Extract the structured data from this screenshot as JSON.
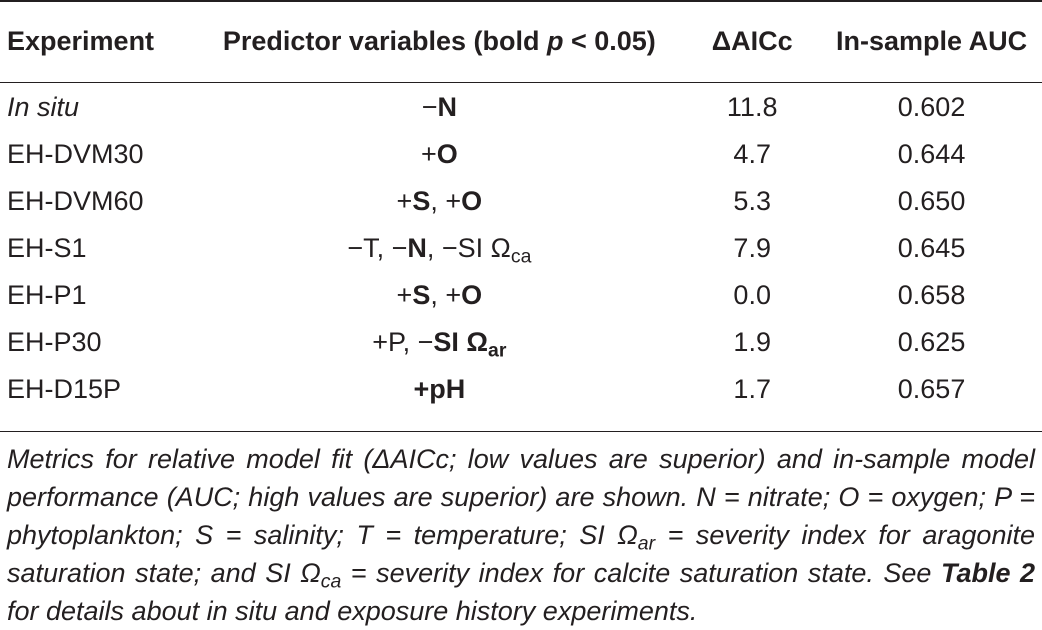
{
  "table": {
    "headers": {
      "experiment": "Experiment",
      "predictor": "Predictor variables (bold ",
      "predictor_p": "p",
      "predictor_tail": " < 0.05)",
      "daicc": "ΔAICc",
      "auc": "In-sample AUC"
    },
    "rows": [
      {
        "experiment": "In situ",
        "italic": true,
        "predictor": [
          {
            "t": "−"
          },
          {
            "t": "N",
            "b": true
          }
        ],
        "daicc": "11.8",
        "auc": "0.602"
      },
      {
        "experiment": "EH-DVM30",
        "predictor": [
          {
            "t": "+"
          },
          {
            "t": "O",
            "b": true
          }
        ],
        "daicc": "4.7",
        "auc": "0.644"
      },
      {
        "experiment": "EH-DVM60",
        "predictor": [
          {
            "t": "+"
          },
          {
            "t": "S",
            "b": true
          },
          {
            "t": ", +"
          },
          {
            "t": "O",
            "b": true
          }
        ],
        "daicc": "5.3",
        "auc": "0.650"
      },
      {
        "experiment": "EH-S1",
        "predictor": [
          {
            "t": "−T, −"
          },
          {
            "t": "N",
            "b": true
          },
          {
            "t": ", −SI Ω"
          },
          {
            "t": "ca",
            "sub": true
          }
        ],
        "daicc": "7.9",
        "auc": "0.645"
      },
      {
        "experiment": "EH-P1",
        "predictor": [
          {
            "t": "+"
          },
          {
            "t": "S",
            "b": true
          },
          {
            "t": ", +"
          },
          {
            "t": "O",
            "b": true
          }
        ],
        "daicc": "0.0",
        "auc": "0.658"
      },
      {
        "experiment": "EH-P30",
        "predictor": [
          {
            "t": "+P, −"
          },
          {
            "t": "SI Ω",
            "b": true
          },
          {
            "t": "ar",
            "b": true,
            "sub": true
          }
        ],
        "daicc": "1.9",
        "auc": "0.625"
      },
      {
        "experiment": "EH-D15P",
        "predictor": [
          {
            "t": "+pH",
            "b": true
          }
        ],
        "daicc": "1.7",
        "auc": "0.657"
      }
    ]
  },
  "caption": {
    "parts": [
      {
        "t": "Metrics for relative model fit (ΔAICc; low values are superior) and in-sample model performance (AUC; high values are superior) are shown. N = nitrate; O = oxygen; P = phytoplankton; S = salinity; T = temperature; SI Ω"
      },
      {
        "t": "ar",
        "sub": true
      },
      {
        "t": " = severity index for aragonite saturation state; and SI Ω"
      },
      {
        "t": "ca",
        "sub": true
      },
      {
        "t": " = severity index for calcite saturation state. See "
      },
      {
        "t": "Table 2",
        "b": true
      },
      {
        "t": " for details about in situ and exposure history experiments."
      }
    ]
  }
}
